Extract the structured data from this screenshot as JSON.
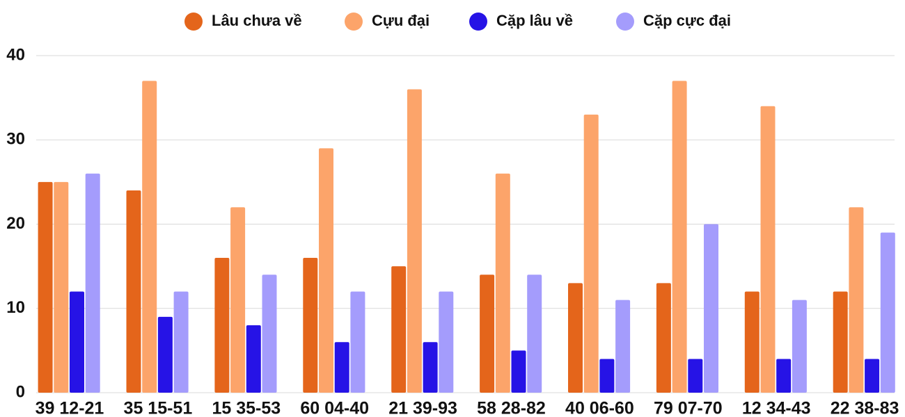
{
  "chart_data": {
    "type": "bar",
    "categories": [
      "39 12-21",
      "35 15-51",
      "15 35-53",
      "60 04-40",
      "21 39-93",
      "58 28-82",
      "40 06-60",
      "79 07-70",
      "12 34-43",
      "22 38-83"
    ],
    "series": [
      {
        "name": "Lâu chưa về",
        "color": "#e4651b",
        "values": [
          25,
          24,
          16,
          16,
          15,
          14,
          13,
          13,
          12,
          12
        ]
      },
      {
        "name": "Cựu đại",
        "color": "#fca46a",
        "values": [
          25,
          37,
          22,
          29,
          36,
          26,
          33,
          37,
          34,
          22
        ]
      },
      {
        "name": "Cặp lâu về",
        "color": "#2613e6",
        "values": [
          12,
          9,
          8,
          6,
          6,
          5,
          4,
          4,
          4,
          4
        ]
      },
      {
        "name": "Cặp cực đại",
        "color": "#a49cfc",
        "values": [
          26,
          12,
          14,
          12,
          12,
          14,
          11,
          20,
          11,
          19
        ]
      }
    ],
    "ylim": [
      0,
      40
    ],
    "yticks": [
      0,
      10,
      20,
      30,
      40
    ],
    "grid": true,
    "legend": "top"
  }
}
